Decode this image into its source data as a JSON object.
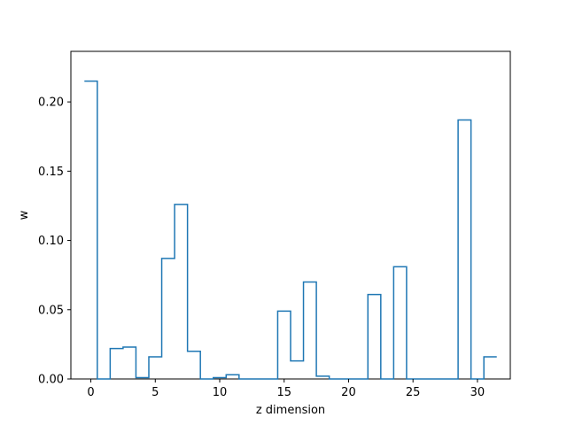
{
  "chart_data": {
    "type": "line",
    "style": "step-histogram",
    "xlabel": "z dimension",
    "ylabel": "w",
    "xlim": [
      -1.55,
      32.55
    ],
    "ylim": [
      0,
      0.2365
    ],
    "xticks": [
      0,
      5,
      10,
      15,
      20,
      25,
      30
    ],
    "yticks": [
      0.0,
      0.05,
      0.1,
      0.15,
      0.2
    ],
    "xtick_labels": [
      "0",
      "5",
      "10",
      "15",
      "20",
      "25",
      "30"
    ],
    "ytick_labels": [
      "0.00",
      "0.05",
      "0.10",
      "0.15",
      "0.20"
    ],
    "grid": false,
    "color": "#1f77b4",
    "x": [
      0,
      1,
      2,
      3,
      4,
      5,
      6,
      7,
      8,
      9,
      10,
      11,
      12,
      13,
      14,
      15,
      16,
      17,
      18,
      19,
      20,
      21,
      22,
      23,
      24,
      25,
      26,
      27,
      28,
      29,
      30,
      31
    ],
    "values": [
      0.215,
      0.0,
      0.022,
      0.023,
      0.001,
      0.016,
      0.087,
      0.126,
      0.02,
      0.0,
      0.001,
      0.003,
      0.0,
      0.0,
      0.0,
      0.049,
      0.013,
      0.07,
      0.002,
      0.0,
      0.0,
      0.0,
      0.061,
      0.0,
      0.081,
      0.0,
      0.0,
      0.0,
      0.0,
      0.187,
      0.0,
      0.016
    ]
  }
}
